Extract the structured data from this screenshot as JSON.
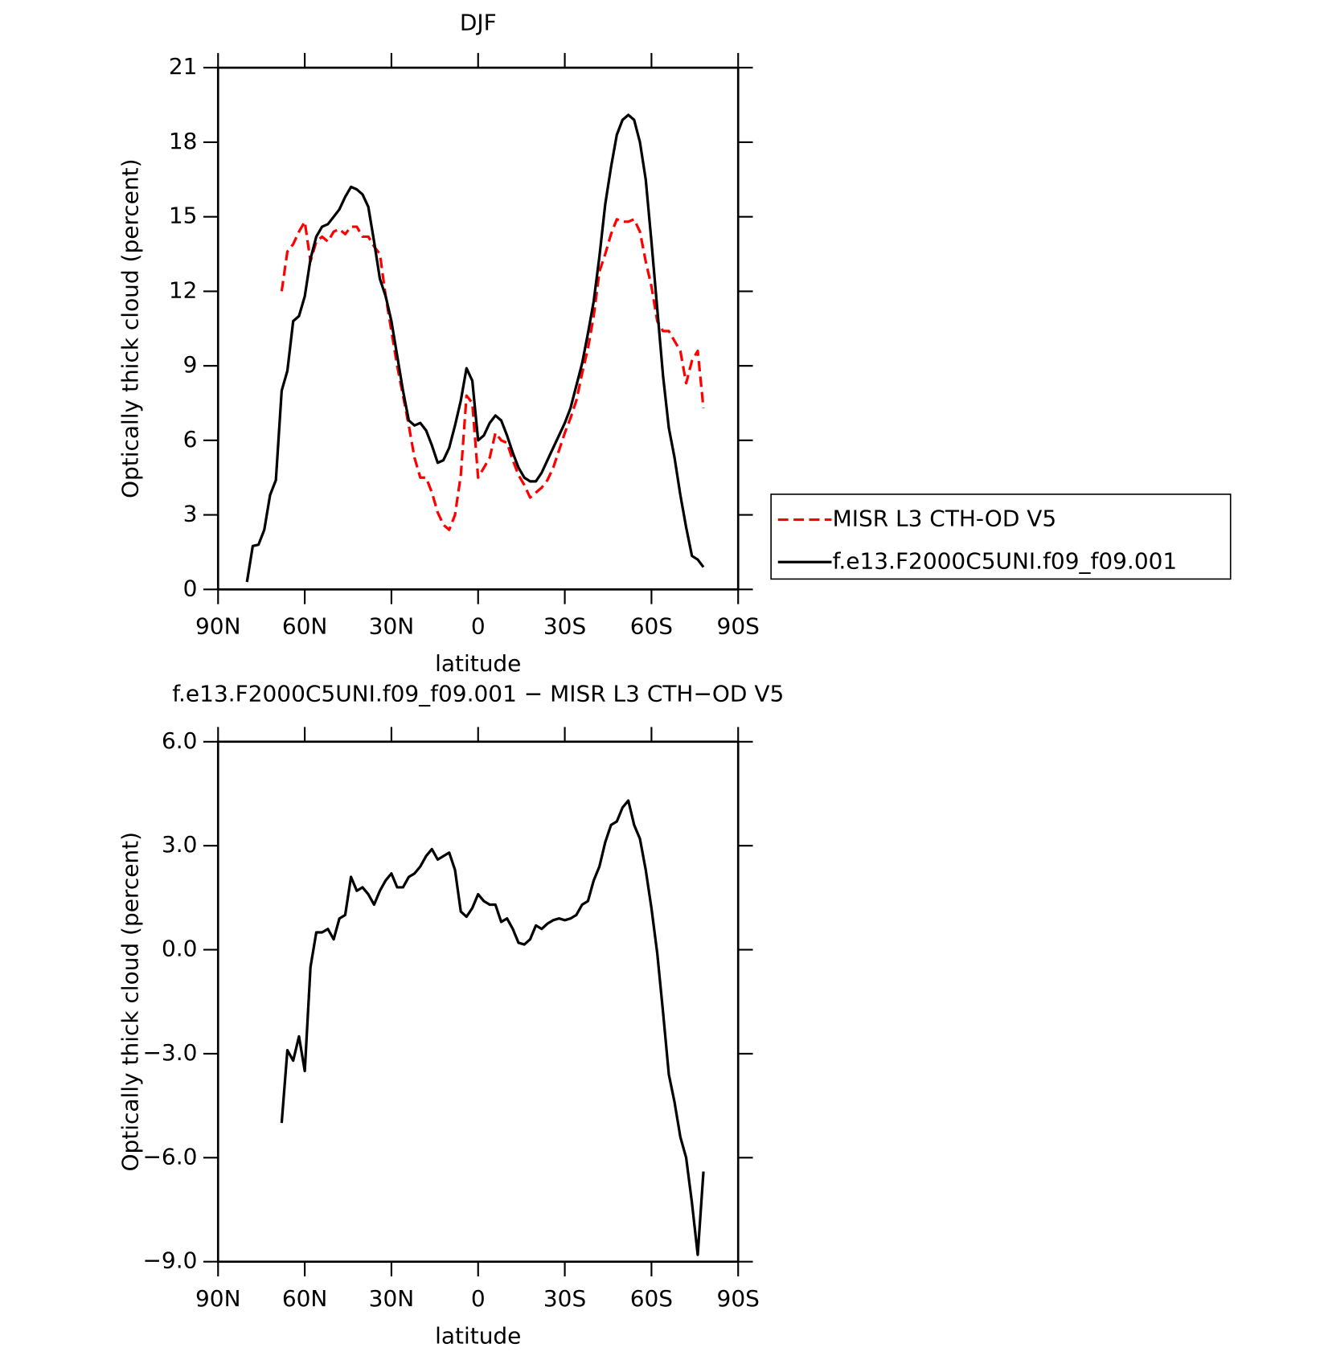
{
  "chart_data": [
    {
      "type": "line",
      "title": "DJF",
      "x_label": "latitude",
      "y_label": "Optically thick cloud (percent)",
      "x": [
        80,
        78,
        76,
        74,
        72,
        70,
        68,
        66,
        64,
        62,
        60,
        58,
        56,
        54,
        52,
        50,
        48,
        46,
        44,
        42,
        40,
        38,
        36,
        34,
        32,
        30,
        28,
        26,
        24,
        22,
        20,
        18,
        16,
        14,
        12,
        10,
        8,
        6,
        4,
        2,
        0,
        -2,
        -4,
        -6,
        -8,
        -10,
        -12,
        -14,
        -16,
        -18,
        -20,
        -22,
        -24,
        -26,
        -28,
        -30,
        -32,
        -34,
        -36,
        -38,
        -40,
        -42,
        -44,
        -46,
        -48,
        -50,
        -52,
        -54,
        -56,
        -58,
        -60,
        -62,
        -64,
        -66,
        -68,
        -70,
        -72,
        -74,
        -76,
        -78
      ],
      "xlim": [
        90,
        -90
      ],
      "xticks": [
        {
          "value": 90,
          "label": "90N"
        },
        {
          "value": 60,
          "label": "60N"
        },
        {
          "value": 30,
          "label": "30N"
        },
        0,
        {
          "value": -30,
          "label": "30S"
        },
        {
          "value": -60,
          "label": "60S"
        },
        {
          "value": -90,
          "label": "90S"
        }
      ],
      "ylim": [
        0,
        21
      ],
      "yticks": [
        0,
        3,
        6,
        9,
        12,
        15,
        18,
        21
      ],
      "legend": "outside right",
      "series": [
        {
          "name": "MISR L3 CTH-OD V5",
          "color": "#ff0000",
          "style": "dashed",
          "values": [
            null,
            null,
            null,
            null,
            null,
            null,
            12.0,
            13.6,
            13.9,
            14.4,
            14.8,
            13.2,
            14.0,
            14.2,
            14.0,
            14.4,
            14.5,
            14.3,
            14.6,
            14.6,
            14.2,
            14.2,
            13.8,
            13.5,
            11.8,
            10.4,
            9.0,
            7.8,
            6.6,
            5.3,
            4.5,
            4.5,
            3.9,
            3.1,
            2.6,
            2.4,
            3.0,
            4.6,
            7.8,
            7.5,
            4.5,
            4.9,
            5.3,
            6.3,
            6.0,
            5.9,
            5.2,
            4.6,
            4.2,
            3.7,
            3.9,
            4.1,
            4.4,
            4.9,
            5.6,
            6.3,
            6.9,
            7.6,
            8.7,
            9.7,
            11.0,
            12.8,
            13.5,
            14.3,
            14.9,
            14.8,
            14.8,
            14.9,
            14.4,
            13.2,
            12.2,
            10.8,
            10.4,
            10.4,
            10.0,
            9.6,
            8.3,
            9.2,
            9.6,
            7.3
          ]
        },
        {
          "name": "f.e13.F2000C5UNI.f09_f09.001",
          "color": "#000000",
          "style": "solid",
          "values": [
            0.3,
            1.75,
            1.8,
            2.4,
            3.8,
            4.4,
            8.0,
            8.8,
            10.8,
            11.0,
            11.8,
            13.3,
            14.2,
            14.6,
            14.7,
            15.0,
            15.3,
            15.8,
            16.2,
            16.1,
            15.9,
            15.4,
            14.0,
            12.5,
            11.8,
            10.8,
            9.4,
            8.0,
            6.8,
            6.6,
            6.7,
            6.4,
            5.8,
            5.1,
            5.2,
            5.7,
            6.6,
            7.6,
            8.9,
            8.4,
            6.0,
            6.2,
            6.7,
            7.0,
            6.8,
            6.2,
            5.5,
            4.9,
            4.5,
            4.35,
            4.35,
            4.7,
            5.2,
            5.7,
            6.2,
            6.7,
            7.3,
            8.2,
            9.1,
            10.3,
            11.6,
            13.4,
            15.5,
            17.0,
            18.3,
            18.9,
            19.1,
            18.9,
            18.0,
            16.5,
            14.0,
            11.3,
            8.6,
            6.5,
            5.3,
            3.8,
            2.5,
            1.35,
            1.2,
            0.9
          ]
        }
      ]
    },
    {
      "type": "line",
      "title": "f.e13.F2000C5UNI.f09_f09.001 − MISR L3 CTH−OD V5",
      "x_label": "latitude",
      "y_label": "Optically thick cloud (percent)",
      "x": [
        80,
        78,
        76,
        74,
        72,
        70,
        68,
        66,
        64,
        62,
        60,
        58,
        56,
        54,
        52,
        50,
        48,
        46,
        44,
        42,
        40,
        38,
        36,
        34,
        32,
        30,
        28,
        26,
        24,
        22,
        20,
        18,
        16,
        14,
        12,
        10,
        8,
        6,
        4,
        2,
        0,
        -2,
        -4,
        -6,
        -8,
        -10,
        -12,
        -14,
        -16,
        -18,
        -20,
        -22,
        -24,
        -26,
        -28,
        -30,
        -32,
        -34,
        -36,
        -38,
        -40,
        -42,
        -44,
        -46,
        -48,
        -50,
        -52,
        -54,
        -56,
        -58,
        -60,
        -62,
        -64,
        -66,
        -68,
        -70,
        -72,
        -74,
        -76,
        -78
      ],
      "xlim": [
        90,
        -90
      ],
      "xticks": [
        {
          "value": 90,
          "label": "90N"
        },
        {
          "value": 60,
          "label": "60N"
        },
        {
          "value": 30,
          "label": "30N"
        },
        0,
        {
          "value": -30,
          "label": "30S"
        },
        {
          "value": -60,
          "label": "60S"
        },
        {
          "value": -90,
          "label": "90S"
        }
      ],
      "ylim": [
        -9,
        6
      ],
      "yticks": [
        {
          "value": -9,
          "label": "−9.0"
        },
        {
          "value": -6,
          "label": "−6.0"
        },
        {
          "value": -3,
          "label": "−3.0"
        },
        {
          "value": 0,
          "label": "0.0"
        },
        {
          "value": 3,
          "label": "3.0"
        },
        {
          "value": 6,
          "label": "6.0"
        }
      ],
      "series": [
        {
          "color": "#000000",
          "style": "solid",
          "values": [
            null,
            null,
            null,
            null,
            null,
            null,
            -5.0,
            -2.9,
            -3.2,
            -2.5,
            -3.5,
            -0.5,
            0.5,
            0.5,
            0.6,
            0.3,
            0.9,
            1.0,
            2.1,
            1.7,
            1.8,
            1.6,
            1.3,
            1.7,
            2.0,
            2.2,
            1.8,
            1.8,
            2.1,
            2.2,
            2.4,
            2.7,
            2.9,
            2.6,
            2.7,
            2.8,
            2.3,
            1.1,
            0.95,
            1.2,
            1.6,
            1.4,
            1.3,
            1.3,
            0.8,
            0.9,
            0.6,
            0.2,
            0.15,
            0.3,
            0.7,
            0.6,
            0.75,
            0.85,
            0.9,
            0.85,
            0.9,
            1.0,
            1.3,
            1.4,
            2.0,
            2.4,
            3.1,
            3.6,
            3.7,
            4.1,
            4.3,
            3.6,
            3.2,
            2.3,
            1.2,
            -0.1,
            -1.8,
            -3.6,
            -4.4,
            -5.4,
            -6.0,
            -7.3,
            -8.8,
            -6.4
          ]
        }
      ]
    }
  ]
}
